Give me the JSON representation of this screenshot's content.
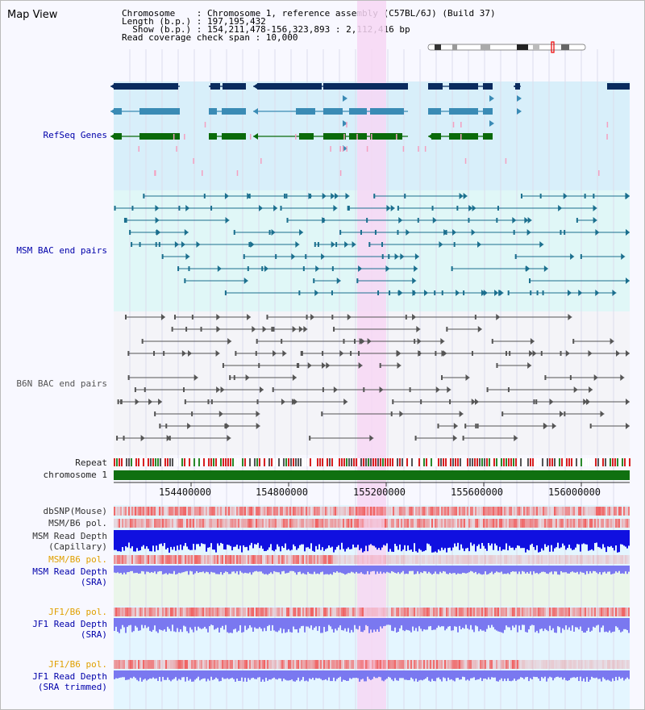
{
  "title": "Map View",
  "info": {
    "line1": "Chromosome    : Chromosome 1, reference assembly (C57BL/6J) (Build 37)",
    "line2": "Length (b.p.) : 197,195,432",
    "line3": "  Show (b.p.) : 154,211,478-156,323,893 : 2,112,416 bp",
    "line4": "Read coverage check span : 10,000"
  },
  "tracks": {
    "refseq": "RefSeq Genes",
    "msm_bac": "MSM BAC end pairs",
    "b6n_bac": "B6N BAC end pairs",
    "repeat": "Repeat",
    "chromosome": "chromosome 1",
    "dbsnp": "dbSNP(Mouse)",
    "msm_b6_pol": "MSM/B6 pol.",
    "msm_depth_cap_1": "MSM Read Depth",
    "msm_depth_cap_2": "(Capillary)",
    "msm_b6_pol_2": "MSM/B6 pol.",
    "msm_depth_sra_1": "MSM Read Depth",
    "msm_depth_sra_2": "(SRA)",
    "jf1_b6_pol": "JF1/B6 pol.",
    "jf1_depth_sra_1": "JF1 Read Depth",
    "jf1_depth_sra_2": "(SRA)",
    "jf1_b6_pol_2": "JF1/B6 pol.",
    "jf1_depth_trim_1": "JF1 Read Depth",
    "jf1_depth_trim_2": "(SRA trimmed)"
  },
  "axis": {
    "ticks": [
      "154400000",
      "154800000",
      "155200000",
      "155600000",
      "156000000"
    ]
  },
  "colors": {
    "highlight": "#f7d7f4",
    "refseq_bg": "#d8effa",
    "msm_bg": "#e0f7f7",
    "b6n_bg": "#f4f4f8",
    "gene_dark": "#0a2b5e",
    "gene_mid": "#3a8bb5",
    "gene_green": "#0a6a0a",
    "msm_line": "#1b6f8e",
    "b6n_line": "#555555",
    "chrom_green": "#107010",
    "depth_blue": "#1010e0",
    "depth_violet": "#7a78f0",
    "snp_red": "#f06060"
  }
}
